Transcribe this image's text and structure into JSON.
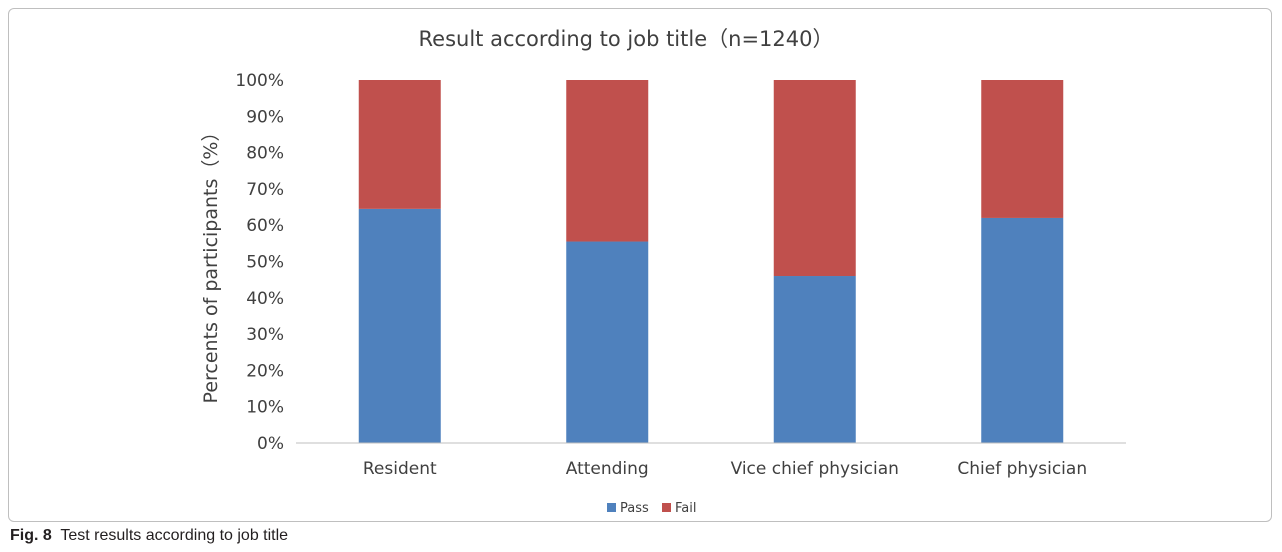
{
  "chart_data": {
    "type": "bar",
    "stacked": true,
    "title": "Result according to job title（n=1240）",
    "ylabel": "Percents of participants（%）",
    "xlabel": "",
    "categories": [
      "Resident",
      "Attending",
      "Vice chief physician",
      "Chief physician"
    ],
    "series": [
      {
        "name": "Pass",
        "color": "#4f81bd",
        "values": [
          64.5,
          55.5,
          46,
          62
        ]
      },
      {
        "name": "Fail",
        "color": "#c0504d",
        "values": [
          35.5,
          44.5,
          54,
          38
        ]
      }
    ],
    "yticks": [
      "0%",
      "10%",
      "20%",
      "30%",
      "40%",
      "50%",
      "60%",
      "70%",
      "80%",
      "90%",
      "100%"
    ],
    "ylim": [
      0,
      100
    ],
    "grid": false,
    "legend_position": "bottom"
  },
  "caption": {
    "label": "Fig. 8",
    "text": "Test results according to job title"
  }
}
